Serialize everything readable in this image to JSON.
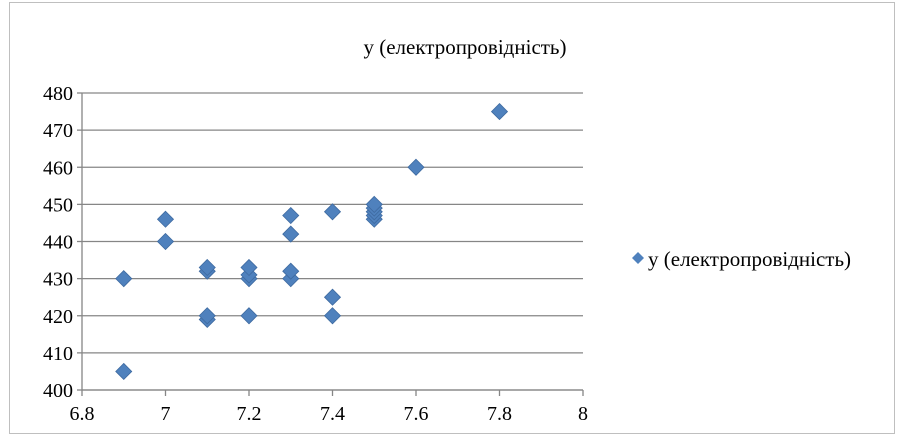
{
  "chart_data": {
    "type": "scatter",
    "title": "y (електропровідність)",
    "xlabel": "",
    "ylabel": "",
    "xlim": [
      6.8,
      8
    ],
    "ylim": [
      400,
      480
    ],
    "xticks": [
      "6.8",
      "7",
      "7.2",
      "7.4",
      "7.6",
      "7.8",
      "8"
    ],
    "yticks": [
      "400",
      "410",
      "420",
      "430",
      "440",
      "450",
      "460",
      "470",
      "480"
    ],
    "grid": "horizontal",
    "legend_position": "right",
    "series": [
      {
        "name": "y (електропровідність)",
        "color": "#4f81bd",
        "marker": "diamond",
        "points": [
          {
            "x": 6.9,
            "y": 405
          },
          {
            "x": 6.9,
            "y": 430
          },
          {
            "x": 7.0,
            "y": 440
          },
          {
            "x": 7.0,
            "y": 446
          },
          {
            "x": 7.1,
            "y": 419
          },
          {
            "x": 7.1,
            "y": 420
          },
          {
            "x": 7.1,
            "y": 432
          },
          {
            "x": 7.1,
            "y": 433
          },
          {
            "x": 7.2,
            "y": 420
          },
          {
            "x": 7.2,
            "y": 430
          },
          {
            "x": 7.2,
            "y": 431
          },
          {
            "x": 7.2,
            "y": 433
          },
          {
            "x": 7.3,
            "y": 430
          },
          {
            "x": 7.3,
            "y": 432
          },
          {
            "x": 7.3,
            "y": 442
          },
          {
            "x": 7.3,
            "y": 447
          },
          {
            "x": 7.4,
            "y": 420
          },
          {
            "x": 7.4,
            "y": 425
          },
          {
            "x": 7.4,
            "y": 448
          },
          {
            "x": 7.5,
            "y": 446
          },
          {
            "x": 7.5,
            "y": 447
          },
          {
            "x": 7.5,
            "y": 448
          },
          {
            "x": 7.5,
            "y": 449
          },
          {
            "x": 7.5,
            "y": 450
          },
          {
            "x": 7.6,
            "y": 460
          },
          {
            "x": 7.8,
            "y": 475
          }
        ]
      }
    ]
  }
}
